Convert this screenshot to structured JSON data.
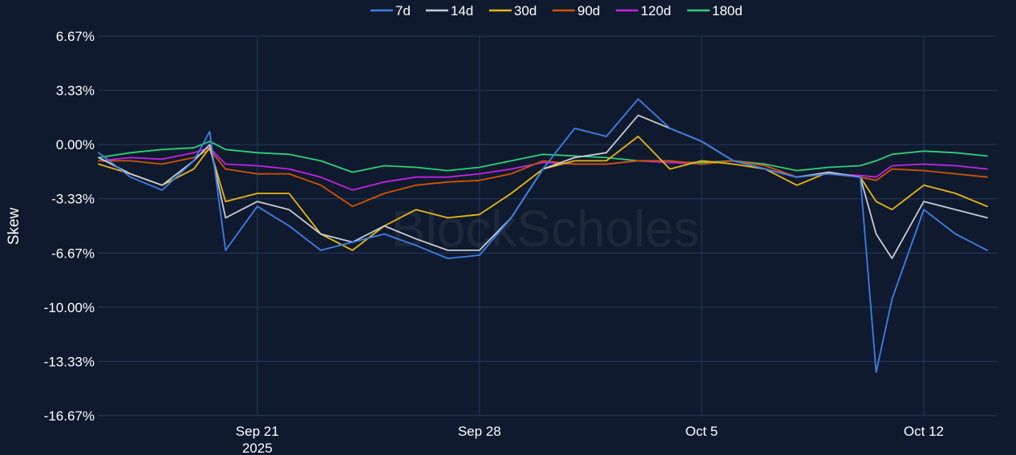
{
  "chart_data": {
    "type": "line",
    "title": "",
    "xlabel": "",
    "ylabel": "Skew",
    "watermark": "BlockScholes",
    "y_unit": "%",
    "ylim": [
      -16.67,
      6.67
    ],
    "yticks": [
      {
        "value": 6.67,
        "label": "6.67%"
      },
      {
        "value": 3.33,
        "label": "3.33%"
      },
      {
        "value": 0.0,
        "label": "0.00%"
      },
      {
        "value": -3.33,
        "label": "-3.33%"
      },
      {
        "value": -6.67,
        "label": "-6.67%"
      },
      {
        "value": -10.0,
        "label": "-10.00%"
      },
      {
        "value": -13.33,
        "label": "-13.33%"
      },
      {
        "value": -16.67,
        "label": "-16.67%"
      }
    ],
    "xlim": [
      "2025-09-16",
      "2025-10-14.3"
    ],
    "xticks": [
      {
        "date": "2025-09-21",
        "label": "Sep 21",
        "sublabel": "2025"
      },
      {
        "date": "2025-09-28",
        "label": "Sep 28",
        "sublabel": ""
      },
      {
        "date": "2025-10-05",
        "label": "Oct 5",
        "sublabel": ""
      },
      {
        "date": "2025-10-12",
        "label": "Oct 12",
        "sublabel": ""
      }
    ],
    "grid": true,
    "legend_position": "top-center",
    "x": [
      "2025-09-16",
      "2025-09-17",
      "2025-09-18",
      "2025-09-19",
      "2025-09-19.5",
      "2025-09-20",
      "2025-09-21",
      "2025-09-22",
      "2025-09-23",
      "2025-09-24",
      "2025-09-25",
      "2025-09-26",
      "2025-09-27",
      "2025-09-28",
      "2025-09-29",
      "2025-09-30",
      "2025-10-01",
      "2025-10-02",
      "2025-10-03",
      "2025-10-04",
      "2025-10-05",
      "2025-10-06",
      "2025-10-07",
      "2025-10-08",
      "2025-10-09",
      "2025-10-10",
      "2025-10-10.5",
      "2025-10-11",
      "2025-10-12",
      "2025-10-13",
      "2025-10-14"
    ],
    "series": [
      {
        "name": "7d",
        "color": "#3f7fe8",
        "values": [
          -0.5,
          -2.0,
          -2.8,
          -1.0,
          0.8,
          -6.5,
          -3.8,
          -5.0,
          -6.5,
          -6.0,
          -5.5,
          -6.2,
          -7.0,
          -6.8,
          -4.5,
          -1.5,
          1.0,
          0.5,
          2.8,
          1.0,
          0.2,
          -1.0,
          -1.5,
          -2.0,
          -1.8,
          -2.0,
          -14.0,
          -9.5,
          -4.0,
          -5.5,
          -6.5
        ]
      },
      {
        "name": "14d",
        "color": "#c7ccd6",
        "values": [
          -0.8,
          -1.8,
          -2.5,
          -1.0,
          0.0,
          -4.5,
          -3.5,
          -4.0,
          -5.5,
          -6.0,
          -5.0,
          -5.8,
          -6.5,
          -6.5,
          -4.5,
          -1.5,
          -0.8,
          -0.5,
          1.8,
          1.0,
          0.2,
          -1.0,
          -1.5,
          -2.0,
          -1.7,
          -2.0,
          -5.5,
          -7.0,
          -3.5,
          -4.0,
          -4.5
        ]
      },
      {
        "name": "30d",
        "color": "#e6b615",
        "values": [
          -1.2,
          -1.8,
          -2.5,
          -1.5,
          -0.2,
          -3.5,
          -3.0,
          -3.0,
          -5.5,
          -6.5,
          -5.0,
          -4.0,
          -4.5,
          -4.3,
          -3.0,
          -1.5,
          -1.0,
          -1.0,
          0.5,
          -1.5,
          -1.0,
          -1.2,
          -1.5,
          -2.5,
          -1.7,
          -2.0,
          -3.5,
          -4.0,
          -2.5,
          -3.0,
          -3.8
        ]
      },
      {
        "name": "90d",
        "color": "#d35400",
        "values": [
          -1.0,
          -1.0,
          -1.2,
          -0.8,
          -0.3,
          -1.5,
          -1.8,
          -1.8,
          -2.5,
          -3.8,
          -3.0,
          -2.5,
          -2.3,
          -2.2,
          -1.8,
          -1.0,
          -1.2,
          -1.2,
          -1.0,
          -1.0,
          -1.2,
          -1.0,
          -1.3,
          -2.0,
          -1.8,
          -2.0,
          -2.2,
          -1.5,
          -1.6,
          -1.8,
          -2.0
        ]
      },
      {
        "name": "120d",
        "color": "#c322e6",
        "values": [
          -1.0,
          -0.8,
          -0.9,
          -0.5,
          -0.2,
          -1.2,
          -1.3,
          -1.5,
          -2.0,
          -2.8,
          -2.3,
          -2.0,
          -2.0,
          -1.8,
          -1.5,
          -1.1,
          -1.2,
          -1.2,
          -1.0,
          -1.1,
          -1.2,
          -1.0,
          -1.3,
          -2.0,
          -1.8,
          -1.9,
          -2.0,
          -1.3,
          -1.2,
          -1.3,
          -1.5
        ]
      },
      {
        "name": "180d",
        "color": "#2ed17a",
        "values": [
          -0.8,
          -0.5,
          -0.3,
          -0.2,
          0.2,
          -0.3,
          -0.5,
          -0.6,
          -1.0,
          -1.7,
          -1.3,
          -1.4,
          -1.6,
          -1.4,
          -1.0,
          -0.6,
          -0.7,
          -0.8,
          -1.0,
          -1.1,
          -1.1,
          -1.0,
          -1.2,
          -1.6,
          -1.4,
          -1.3,
          -1.0,
          -0.6,
          -0.4,
          -0.5,
          -0.7
        ]
      }
    ]
  }
}
